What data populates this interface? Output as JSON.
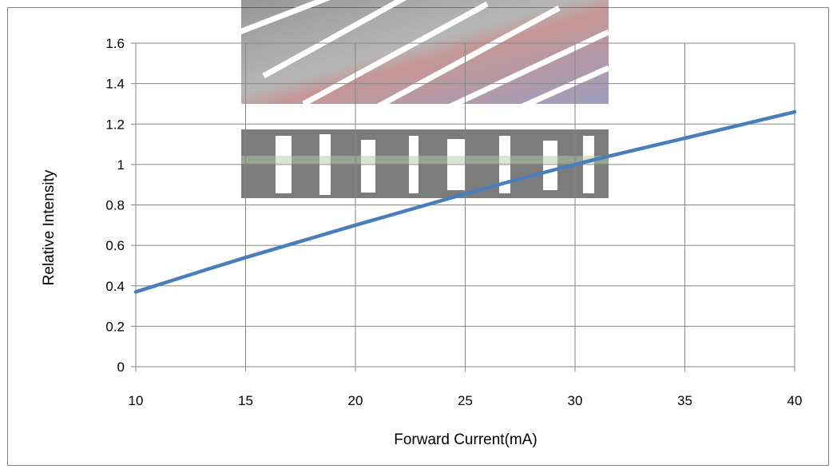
{
  "chart_data": {
    "type": "line",
    "title": "",
    "xlabel": "Forward Current(mA)",
    "ylabel": "Relative Intensity",
    "xlim": [
      10,
      40
    ],
    "ylim": [
      0,
      1.6
    ],
    "x_ticks": [
      10,
      15,
      20,
      25,
      30,
      35,
      40
    ],
    "x_tick_labels": [
      "10",
      "15",
      "20",
      "25",
      "30",
      "35",
      "40"
    ],
    "y_ticks": [
      0,
      0.2,
      0.4,
      0.6,
      0.8,
      1.0,
      1.2,
      1.4,
      1.6
    ],
    "y_tick_labels": [
      "0",
      "0.2",
      "0.4",
      "0.6",
      "0.8",
      "1",
      "1.2",
      "1.4",
      "1.6"
    ],
    "grid": true,
    "legend": "none",
    "series": [
      {
        "color": "#4a7ebb",
        "x": [
          10,
          15,
          20,
          25,
          30,
          35,
          40
        ],
        "y": [
          0.37,
          0.54,
          0.7,
          0.855,
          1.0,
          1.13,
          1.26
        ]
      }
    ]
  }
}
